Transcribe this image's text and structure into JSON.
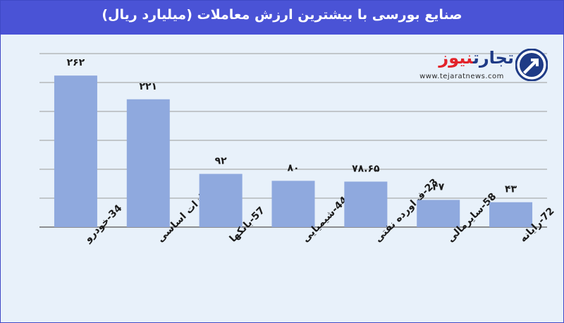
{
  "title": "صنایع بورسی با بیشترین ارزش معاملات  (میلیارد ریال)",
  "logo": {
    "name_main": "تجارت",
    "name_accent": "نیوز",
    "url": "www.tejaratnews.com",
    "icon": "tejaratnews-logo-icon"
  },
  "colors": {
    "header": "#4a53d6",
    "background": "#e8f1fa",
    "bar": "#8fa9de",
    "grid": "#9a9a9a",
    "logo_blue": "#1f3b86",
    "logo_red": "#e2232a"
  },
  "chart_data": {
    "type": "bar",
    "categories": [
      "34-خودرو",
      "27-فلزات اساسی",
      "57-بانکها",
      "44-شیمیایی",
      "23-فراورده نفتی",
      "58-سایرمالی",
      "72-رایانه"
    ],
    "values": [
      262,
      221,
      92,
      80,
      78.65,
      47,
      43
    ],
    "data_labels": [
      "۲۶۲",
      "۲۲۱",
      "۹۲",
      "۸۰",
      "۷۸.۶۵",
      "۴۷",
      "۴۳"
    ],
    "title": "صنایع بورسی با بیشترین ارزش معاملات  (میلیارد ریال)",
    "xlabel": "",
    "ylabel": "",
    "ylim": [
      0,
      300
    ],
    "grid": true,
    "y_ticks_visible": false
  }
}
